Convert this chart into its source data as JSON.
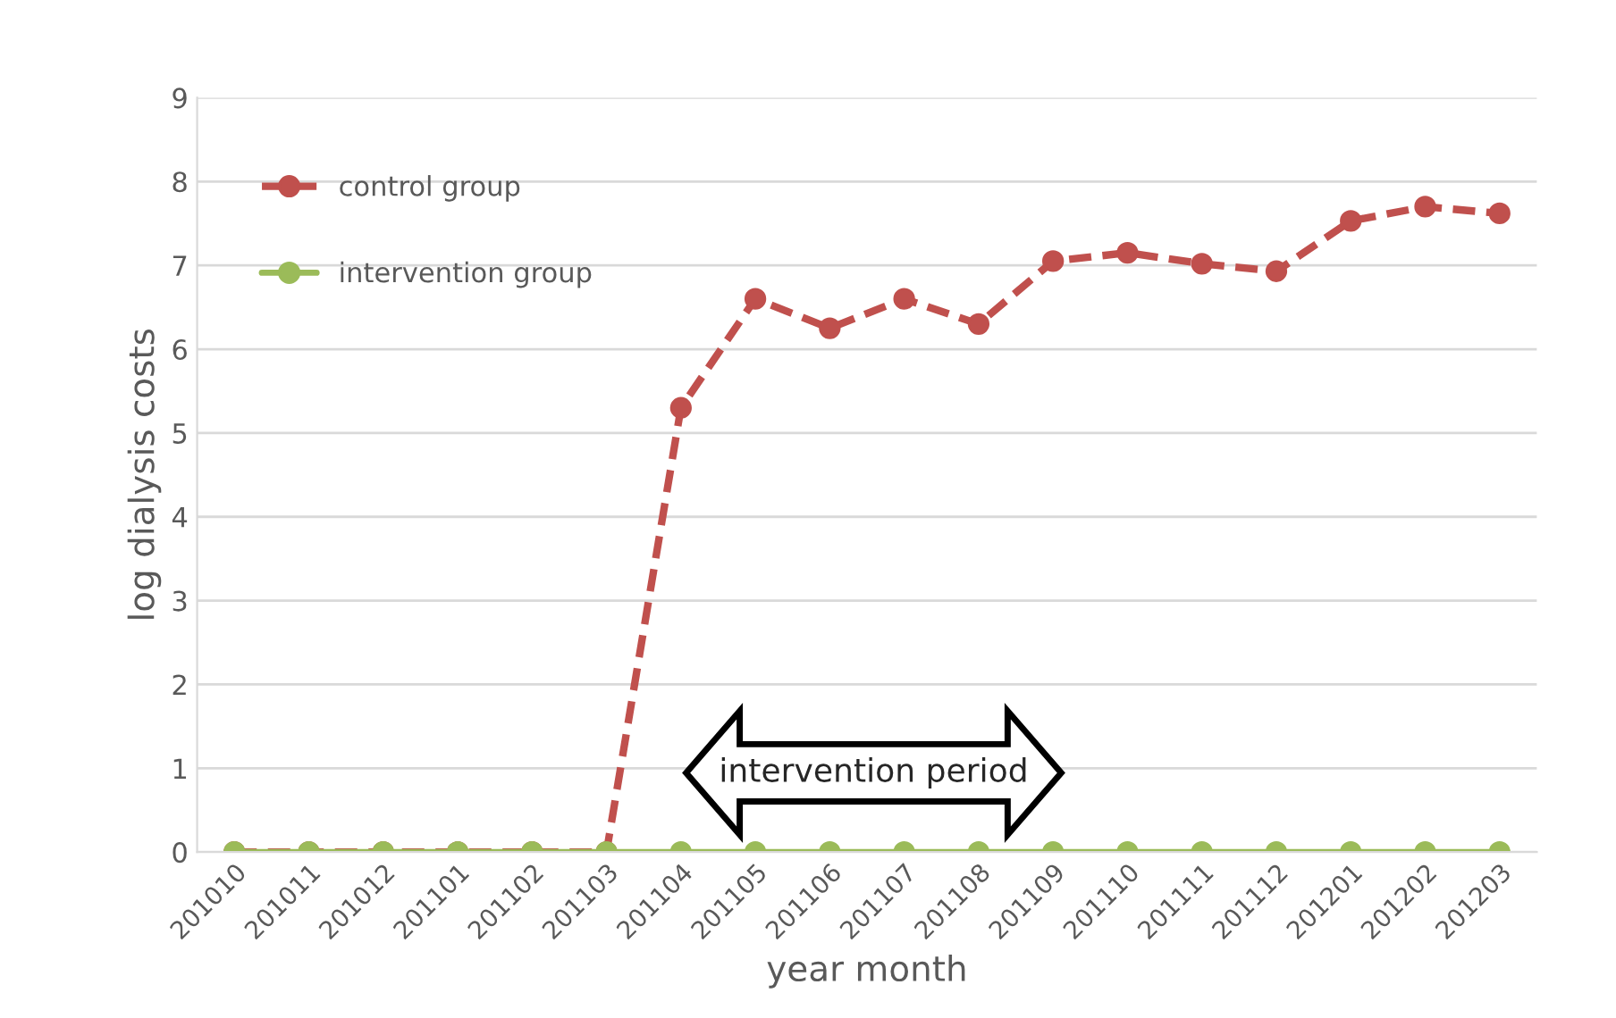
{
  "chart_data": {
    "type": "line",
    "xlabel": "year month",
    "ylabel": "log dialysis costs",
    "categories": [
      "201010",
      "201011",
      "201012",
      "201101",
      "201102",
      "201103",
      "201104",
      "201105",
      "201106",
      "201107",
      "201108",
      "201109",
      "201110",
      "201111",
      "201112",
      "201201",
      "201202",
      "201203"
    ],
    "series": [
      {
        "name": "control group",
        "color": "#c0504d",
        "line_style": "dashed",
        "values": [
          0,
          0,
          0,
          0,
          0,
          0,
          5.3,
          6.6,
          6.25,
          6.6,
          6.3,
          7.05,
          7.15,
          7.02,
          6.93,
          7.53,
          7.7,
          7.62
        ]
      },
      {
        "name": "intervention group",
        "color": "#9bbb59",
        "line_style": "solid",
        "values": [
          0,
          0,
          0,
          0,
          0,
          0,
          0,
          0,
          0,
          0,
          0,
          0,
          0,
          0,
          0,
          0,
          0,
          0
        ]
      }
    ],
    "ylim": [
      0,
      9
    ],
    "yticks": [
      0,
      1,
      2,
      3,
      4,
      5,
      6,
      7,
      8,
      9
    ],
    "grid": "y",
    "legend": "top left",
    "marker": "circle",
    "annotations": [
      "intervention period"
    ]
  }
}
